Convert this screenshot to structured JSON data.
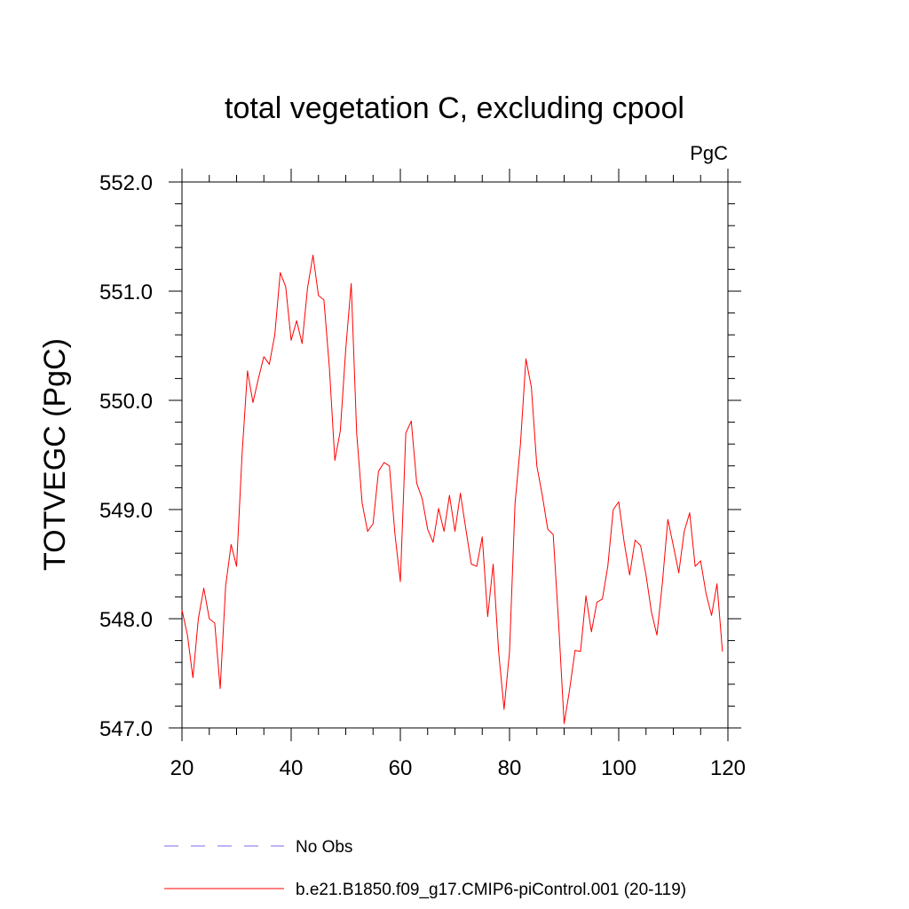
{
  "chart_data": {
    "type": "line",
    "title": "total vegetation C, excluding cpool",
    "units": "PgC",
    "xlabel": "",
    "ylabel": "TOTVEGC  (PgC)",
    "xlim": [
      20,
      120
    ],
    "ylim": [
      547.0,
      552.0
    ],
    "x_ticks": [
      20,
      40,
      60,
      80,
      100,
      120
    ],
    "x_tick_labels": [
      "20",
      "40",
      "60",
      "80",
      "100",
      "120"
    ],
    "y_ticks": [
      547.0,
      548.0,
      549.0,
      550.0,
      551.0,
      552.0
    ],
    "y_tick_labels": [
      "547.0",
      "548.0",
      "549.0",
      "550.0",
      "551.0",
      "552.0"
    ],
    "legend": [
      {
        "label": "No Obs",
        "color": "#7b68ee",
        "style": "dashed"
      },
      {
        "label": "b.e21.B1850.f09_g17.CMIP6-piControl.001 (20-119)",
        "color": "#ff0000",
        "style": "solid"
      }
    ],
    "series": [
      {
        "name": "b.e21.B1850.f09_g17.CMIP6-piControl.001 (20-119)",
        "color": "#ff0000",
        "x": [
          20,
          21,
          22,
          23,
          24,
          25,
          26,
          27,
          28,
          29,
          30,
          31,
          32,
          33,
          34,
          35,
          36,
          37,
          38,
          39,
          40,
          41,
          42,
          43,
          44,
          45,
          46,
          47,
          48,
          49,
          50,
          51,
          52,
          53,
          54,
          55,
          56,
          57,
          58,
          59,
          60,
          61,
          62,
          63,
          64,
          65,
          66,
          67,
          68,
          69,
          70,
          71,
          72,
          73,
          74,
          75,
          76,
          77,
          78,
          79,
          80,
          81,
          82,
          83,
          84,
          85,
          86,
          87,
          88,
          89,
          90,
          91,
          92,
          93,
          94,
          95,
          96,
          97,
          98,
          99,
          100,
          101,
          102,
          103,
          104,
          105,
          106,
          107,
          108,
          109,
          110,
          111,
          112,
          113,
          114,
          115,
          116,
          117,
          118,
          119
        ],
        "values": [
          548.08,
          547.85,
          547.46,
          548.0,
          548.28,
          548.0,
          547.96,
          547.36,
          548.3,
          548.68,
          548.48,
          549.5,
          550.27,
          549.98,
          550.2,
          550.4,
          550.33,
          550.6,
          551.17,
          551.04,
          550.55,
          550.73,
          550.52,
          551.03,
          551.33,
          550.96,
          550.92,
          550.3,
          549.45,
          549.72,
          550.47,
          551.07,
          549.7,
          549.06,
          548.8,
          548.87,
          549.35,
          549.43,
          549.4,
          548.78,
          548.34,
          549.7,
          549.81,
          549.24,
          549.1,
          548.82,
          548.7,
          549.01,
          548.8,
          549.13,
          548.8,
          549.15,
          548.82,
          548.5,
          548.48,
          548.75,
          548.02,
          548.5,
          547.7,
          547.17,
          547.7,
          549.05,
          549.6,
          550.38,
          550.12,
          549.4,
          549.13,
          548.82,
          548.77,
          547.95,
          547.04,
          547.35,
          547.71,
          547.7,
          548.21,
          547.88,
          548.15,
          548.18,
          548.48,
          549.0,
          549.07,
          548.7,
          548.4,
          548.72,
          548.67,
          548.4,
          548.06,
          547.85,
          548.33,
          548.91,
          548.67,
          548.42,
          548.8,
          548.97,
          548.48,
          548.53,
          548.23,
          548.03,
          548.32,
          547.7
        ]
      }
    ]
  }
}
